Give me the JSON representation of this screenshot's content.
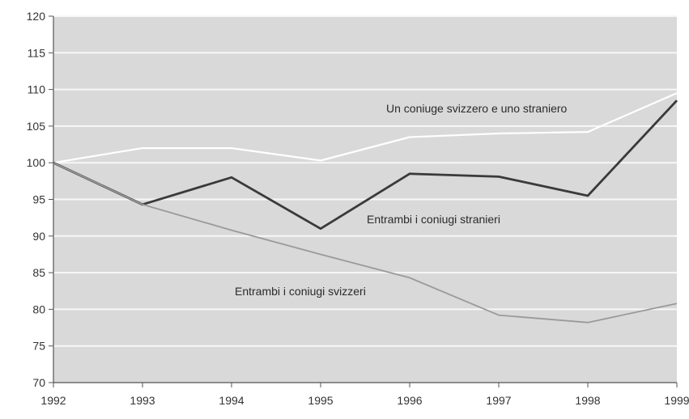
{
  "chart_data": {
    "type": "line",
    "title": "",
    "xlabel": "",
    "ylabel": "",
    "x": [
      1992,
      1993,
      1994,
      1995,
      1996,
      1997,
      1998,
      1999
    ],
    "ylim": [
      70,
      120
    ],
    "yticks": [
      70,
      75,
      80,
      85,
      90,
      95,
      100,
      105,
      110,
      115,
      120
    ],
    "grid": true,
    "series": [
      {
        "name": "Un coniuge svizzero e uno straniero",
        "values": [
          100,
          102,
          102,
          100.3,
          103.5,
          104,
          104.2,
          109.5
        ],
        "color": "#ffffff"
      },
      {
        "name": "Entrambi i coniugi stranieri",
        "values": [
          100,
          94.3,
          98,
          91,
          98.5,
          98.1,
          95.5,
          108.5
        ],
        "color": "#3a3a3a"
      },
      {
        "name": "Entrambi i coniugi svizzeri",
        "values": [
          100,
          94.3,
          90.8,
          87.5,
          84.3,
          79.2,
          78.2,
          80.8
        ],
        "color": "#9a9a9a"
      }
    ]
  }
}
